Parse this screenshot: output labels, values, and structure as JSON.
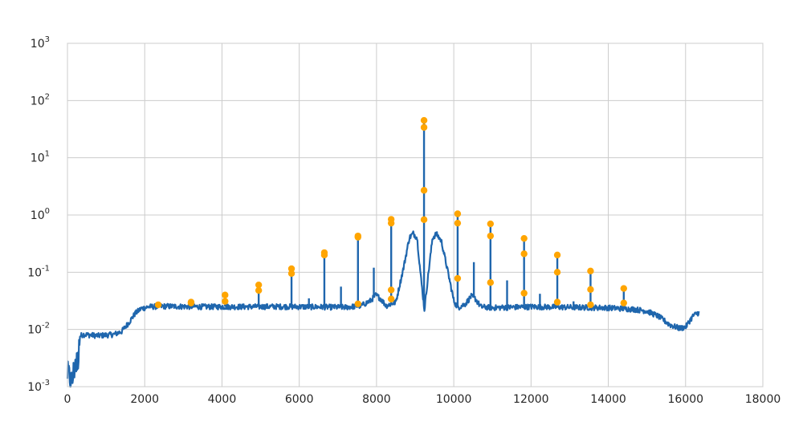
{
  "chart_data": {
    "type": "line",
    "title": "",
    "xlabel": "",
    "ylabel": "",
    "xlim": [
      0,
      18000
    ],
    "ylim": [
      0.001,
      1000
    ],
    "yscale": "log",
    "grid": true,
    "x_ticks": [
      "0",
      "2000",
      "4000",
      "6000",
      "8000",
      "10000",
      "12000",
      "14000",
      "16000",
      "18000"
    ],
    "y_ticks": [
      {
        "base": "10",
        "exp": "-3",
        "value": 0.001
      },
      {
        "base": "10",
        "exp": "-2",
        "value": 0.01
      },
      {
        "base": "10",
        "exp": "-1",
        "value": 0.1
      },
      {
        "base": "10",
        "exp": "0",
        "value": 1
      },
      {
        "base": "10",
        "exp": "1",
        "value": 10
      },
      {
        "base": "10",
        "exp": "2",
        "value": 100
      },
      {
        "base": "10",
        "exp": "3",
        "value": 1000
      }
    ],
    "colors": {
      "spectrum": "#1f66ad",
      "markers": "#ffa500"
    },
    "spectrum": {
      "baseline": [
        [
          0,
          0.0018
        ],
        [
          120,
          0.0012
        ],
        [
          200,
          0.003
        ],
        [
          260,
          0.0025
        ],
        [
          300,
          0.0075
        ],
        [
          400,
          0.0082
        ],
        [
          800,
          0.0078
        ],
        [
          1200,
          0.0082
        ],
        [
          1400,
          0.0092
        ],
        [
          1600,
          0.0135
        ],
        [
          1750,
          0.019
        ],
        [
          1900,
          0.023
        ],
        [
          2100,
          0.025
        ],
        [
          2500,
          0.0255
        ],
        [
          3500,
          0.025
        ],
        [
          4500,
          0.025
        ],
        [
          5500,
          0.0252
        ],
        [
          6500,
          0.0248
        ],
        [
          7200,
          0.0245
        ],
        [
          7600,
          0.026
        ],
        [
          7850,
          0.032
        ],
        [
          7980,
          0.04
        ],
        [
          8100,
          0.035
        ],
        [
          8250,
          0.026
        ],
        [
          8500,
          0.03
        ],
        [
          8700,
          0.12
        ],
        [
          8850,
          0.4
        ],
        [
          8950,
          0.48
        ],
        [
          9050,
          0.4
        ],
        [
          9150,
          0.08
        ],
        [
          9240,
          0.022
        ],
        [
          9330,
          0.08
        ],
        [
          9450,
          0.4
        ],
        [
          9550,
          0.47
        ],
        [
          9680,
          0.35
        ],
        [
          9850,
          0.1
        ],
        [
          10000,
          0.032
        ],
        [
          10100,
          0.024
        ],
        [
          10300,
          0.028
        ],
        [
          10450,
          0.038
        ],
        [
          10550,
          0.035
        ],
        [
          10700,
          0.025
        ],
        [
          11000,
          0.024
        ],
        [
          12000,
          0.025
        ],
        [
          13000,
          0.0245
        ],
        [
          14000,
          0.024
        ],
        [
          14700,
          0.0225
        ],
        [
          15000,
          0.021
        ],
        [
          15300,
          0.017
        ],
        [
          15600,
          0.012
        ],
        [
          15850,
          0.0105
        ],
        [
          16000,
          0.011
        ],
        [
          16100,
          0.014
        ],
        [
          16200,
          0.0175
        ],
        [
          16350,
          0.02
        ]
      ],
      "spikes": [
        [
          2350,
          0.027
        ],
        [
          3200,
          0.03
        ],
        [
          4080,
          0.04
        ],
        [
          4950,
          0.06
        ],
        [
          5800,
          0.115
        ],
        [
          6650,
          0.22
        ],
        [
          7520,
          0.44
        ],
        [
          8380,
          0.85
        ],
        [
          9230,
          45
        ],
        [
          10100,
          1.05
        ],
        [
          10950,
          0.72
        ],
        [
          11820,
          0.4
        ],
        [
          12680,
          0.2
        ],
        [
          13540,
          0.105
        ],
        [
          14400,
          0.052
        ],
        [
          6250,
          0.035
        ],
        [
          7080,
          0.056
        ],
        [
          7930,
          0.12
        ],
        [
          10520,
          0.15
        ],
        [
          11380,
          0.072
        ],
        [
          12230,
          0.042
        ],
        [
          13100,
          0.031
        ]
      ]
    },
    "markers": [
      [
        2350,
        0.027
      ],
      [
        3200,
        0.029
      ],
      [
        3200,
        0.03
      ],
      [
        4080,
        0.031
      ],
      [
        4080,
        0.04
      ],
      [
        4950,
        0.048
      ],
      [
        4950,
        0.06
      ],
      [
        5800,
        0.095
      ],
      [
        5800,
        0.115
      ],
      [
        6650,
        0.2
      ],
      [
        6650,
        0.22
      ],
      [
        7520,
        0.028
      ],
      [
        7520,
        0.41
      ],
      [
        7520,
        0.43
      ],
      [
        8380,
        0.034
      ],
      [
        8380,
        0.049
      ],
      [
        8380,
        0.72
      ],
      [
        8380,
        0.84
      ],
      [
        9230,
        0.83
      ],
      [
        9230,
        2.7
      ],
      [
        9230,
        34
      ],
      [
        9230,
        45
      ],
      [
        10100,
        0.078
      ],
      [
        10100,
        0.72
      ],
      [
        10100,
        1.05
      ],
      [
        10950,
        0.066
      ],
      [
        10950,
        0.43
      ],
      [
        10950,
        0.7
      ],
      [
        11820,
        0.043
      ],
      [
        11820,
        0.21
      ],
      [
        11820,
        0.39
      ],
      [
        12680,
        0.03
      ],
      [
        12680,
        0.1
      ],
      [
        12680,
        0.2
      ],
      [
        13540,
        0.027
      ],
      [
        13540,
        0.05
      ],
      [
        13540,
        0.105
      ],
      [
        14400,
        0.029
      ],
      [
        14400,
        0.052
      ]
    ]
  }
}
